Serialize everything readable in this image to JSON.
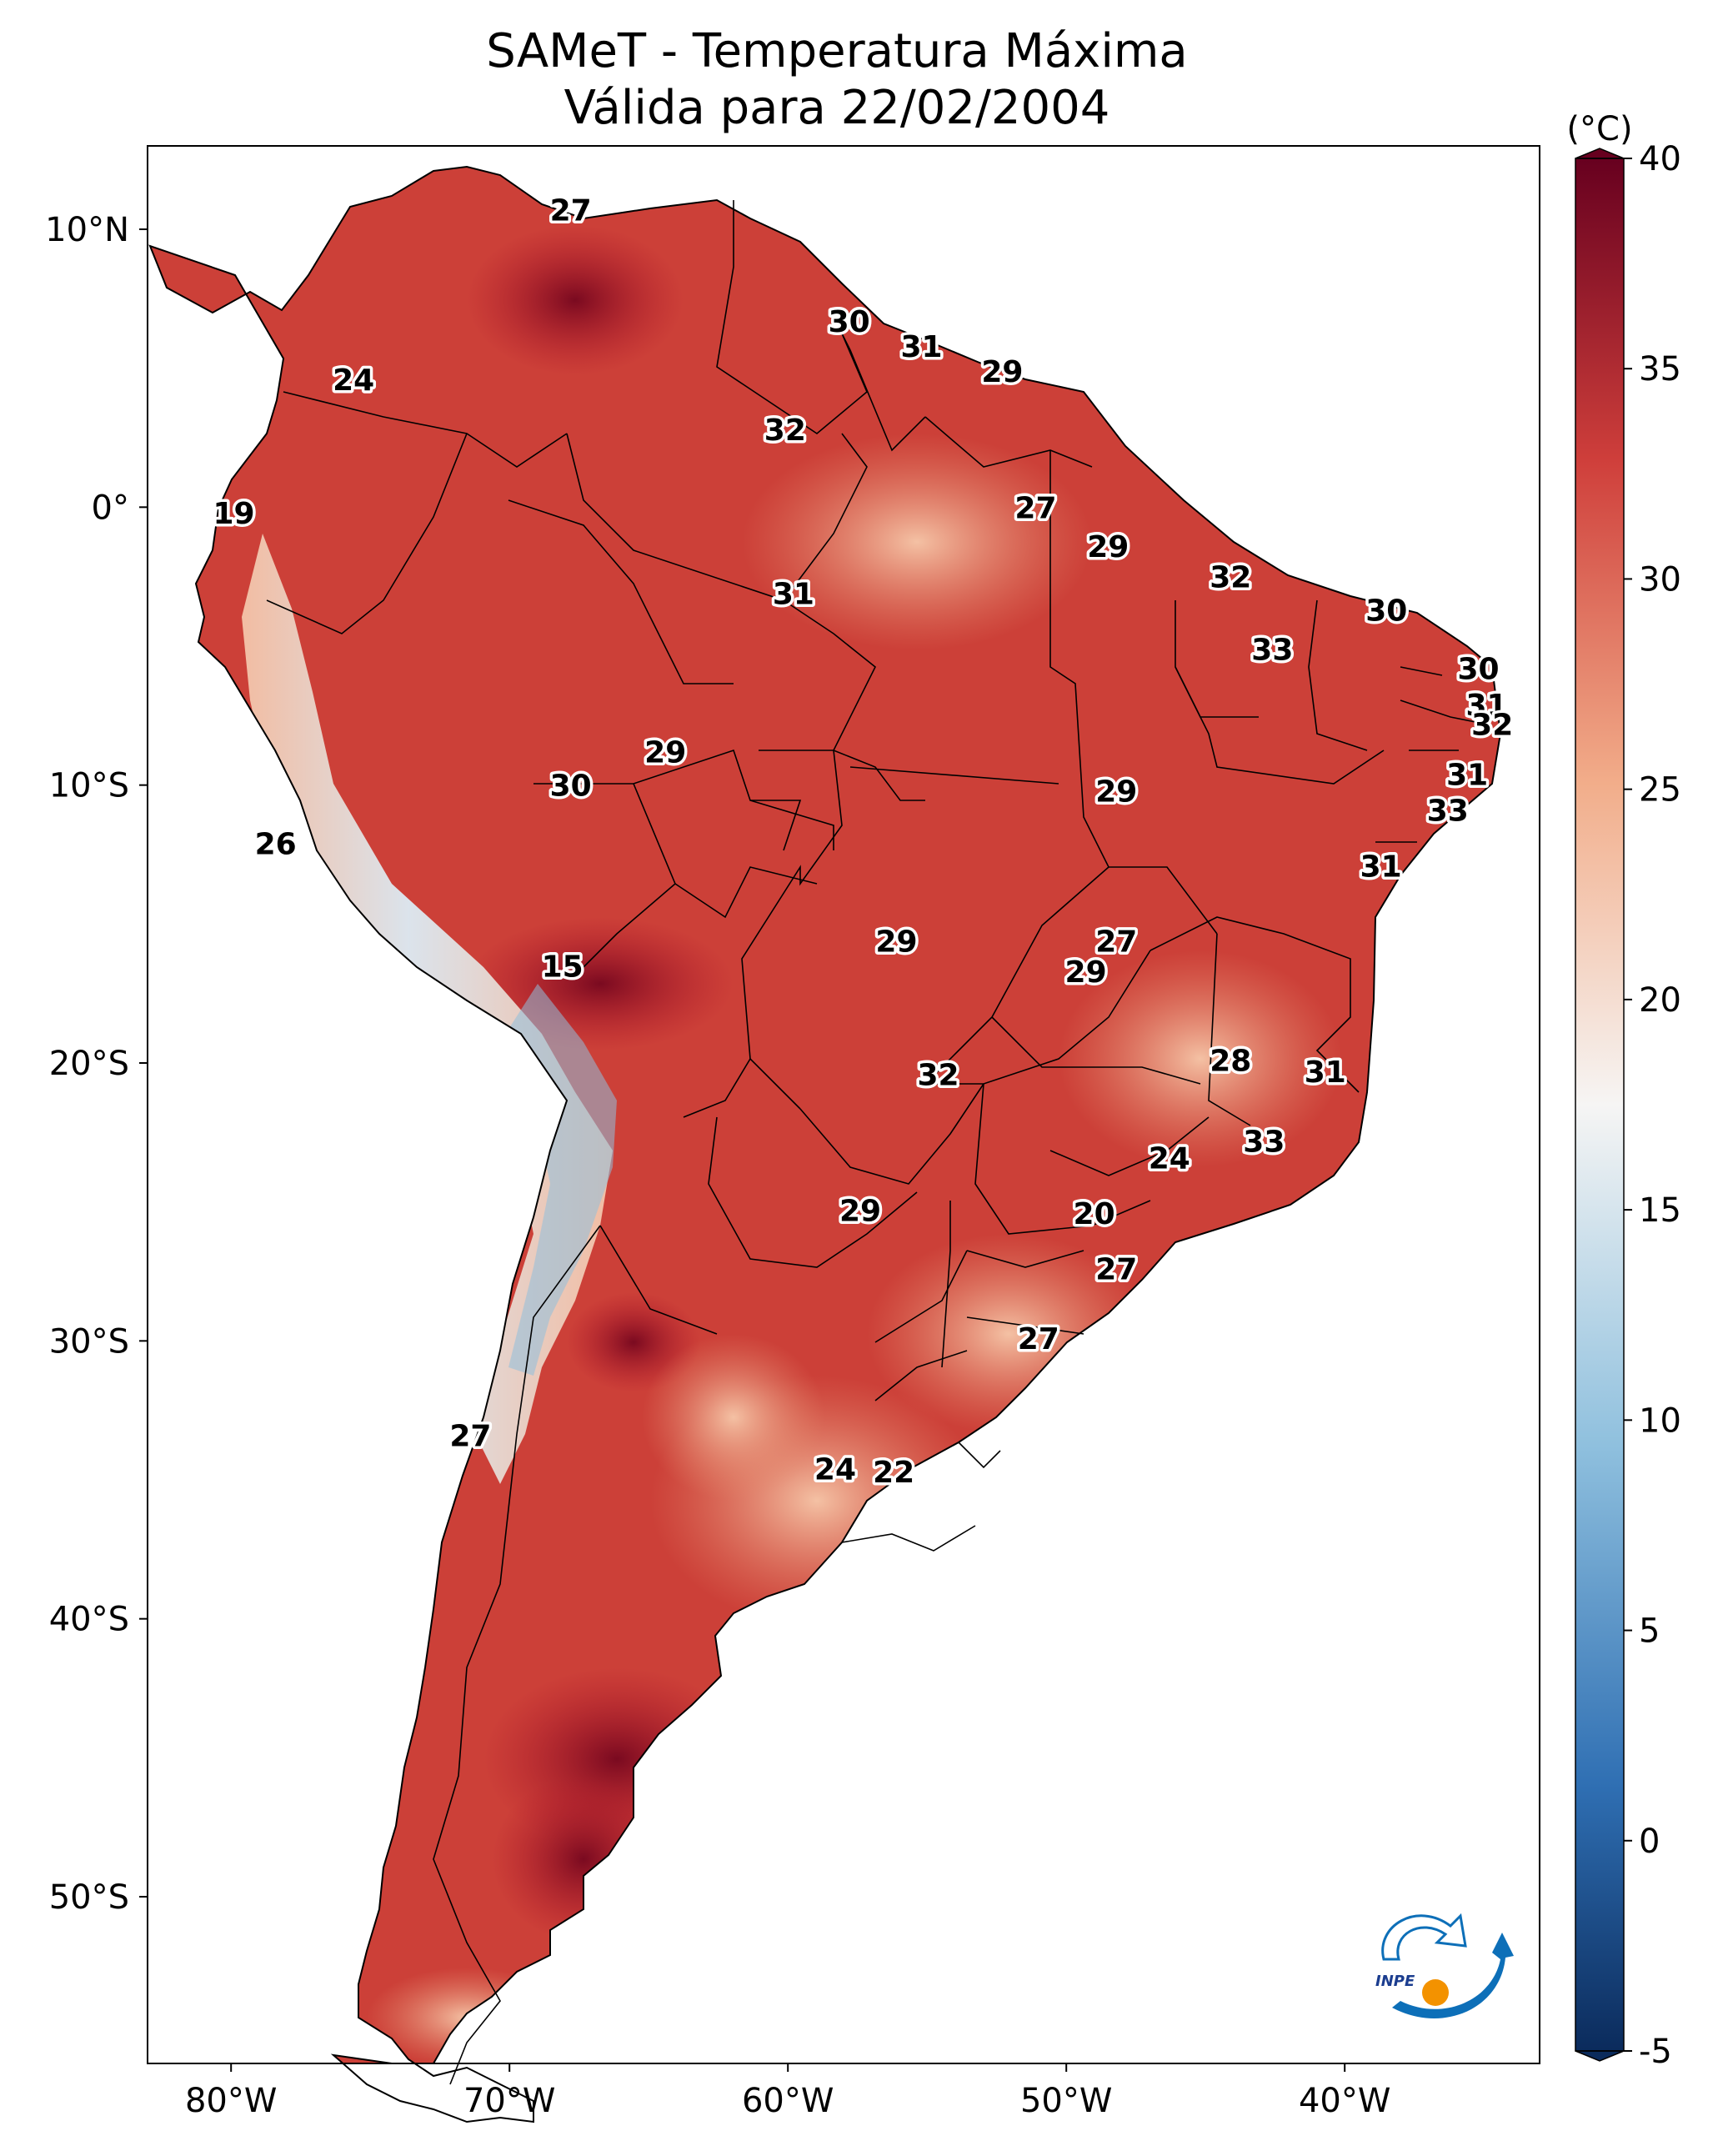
{
  "title": {
    "line1": "SAMeT - Temperatura Máxima",
    "line2": "Válida para 22/02/2004"
  },
  "map": {
    "lon_range": [
      -83,
      -33
    ],
    "lat_range": [
      -56,
      13
    ],
    "lon_ticks": [
      {
        "value": -80,
        "label": "80°W"
      },
      {
        "value": -70,
        "label": "70°W"
      },
      {
        "value": -60,
        "label": "60°W"
      },
      {
        "value": -50,
        "label": "50°W"
      },
      {
        "value": -40,
        "label": "40°W"
      }
    ],
    "lat_ticks": [
      {
        "value": 10,
        "label": "10°N"
      },
      {
        "value": 0,
        "label": "0°"
      },
      {
        "value": -10,
        "label": "10°S"
      },
      {
        "value": -20,
        "label": "20°S"
      },
      {
        "value": -30,
        "label": "30°S"
      },
      {
        "value": -40,
        "label": "40°S"
      },
      {
        "value": -50,
        "label": "50°S"
      }
    ],
    "station_labels": [
      {
        "lon": -67.8,
        "lat": 10.7,
        "label": "27"
      },
      {
        "lon": -75.6,
        "lat": 4.6,
        "label": "24"
      },
      {
        "lon": -57.8,
        "lat": 6.7,
        "label": "30"
      },
      {
        "lon": -55.2,
        "lat": 5.8,
        "label": "31"
      },
      {
        "lon": -52.3,
        "lat": 4.9,
        "label": "29"
      },
      {
        "lon": -60.1,
        "lat": 2.8,
        "label": "32"
      },
      {
        "lon": -51.1,
        "lat": 0.0,
        "label": "27"
      },
      {
        "lon": -79.9,
        "lat": -0.2,
        "label": "19"
      },
      {
        "lon": -48.5,
        "lat": -1.4,
        "label": "29"
      },
      {
        "lon": -59.8,
        "lat": -3.1,
        "label": "31"
      },
      {
        "lon": -44.1,
        "lat": -2.5,
        "label": "32"
      },
      {
        "lon": -38.5,
        "lat": -3.7,
        "label": "30"
      },
      {
        "lon": -42.6,
        "lat": -5.1,
        "label": "33"
      },
      {
        "lon": -35.2,
        "lat": -5.8,
        "label": "30"
      },
      {
        "lon": -34.9,
        "lat": -7.1,
        "label": "31"
      },
      {
        "lon": -34.7,
        "lat": -7.8,
        "label": "32"
      },
      {
        "lon": -64.4,
        "lat": -8.8,
        "label": "29"
      },
      {
        "lon": -35.6,
        "lat": -9.6,
        "label": "31"
      },
      {
        "lon": -67.8,
        "lat": -10.0,
        "label": "30"
      },
      {
        "lon": -48.2,
        "lat": -10.2,
        "label": "29"
      },
      {
        "lon": -36.3,
        "lat": -10.9,
        "label": "33"
      },
      {
        "lon": -78.4,
        "lat": -12.1,
        "label": "26"
      },
      {
        "lon": -38.7,
        "lat": -12.9,
        "label": "31"
      },
      {
        "lon": -56.1,
        "lat": -15.6,
        "label": "29"
      },
      {
        "lon": -48.2,
        "lat": -15.6,
        "label": "27"
      },
      {
        "lon": -49.3,
        "lat": -16.7,
        "label": "29"
      },
      {
        "lon": -68.1,
        "lat": -16.5,
        "label": "15"
      },
      {
        "lon": -44.1,
        "lat": -19.9,
        "label": "28"
      },
      {
        "lon": -40.7,
        "lat": -20.3,
        "label": "31"
      },
      {
        "lon": -54.6,
        "lat": -20.4,
        "label": "32"
      },
      {
        "lon": -42.9,
        "lat": -22.8,
        "label": "33"
      },
      {
        "lon": -46.3,
        "lat": -23.4,
        "label": "24"
      },
      {
        "lon": -49.0,
        "lat": -25.4,
        "label": "20"
      },
      {
        "lon": -57.4,
        "lat": -25.3,
        "label": "29"
      },
      {
        "lon": -48.2,
        "lat": -27.4,
        "label": "27"
      },
      {
        "lon": -51.0,
        "lat": -29.9,
        "label": "27"
      },
      {
        "lon": -71.4,
        "lat": -33.4,
        "label": "27"
      },
      {
        "lon": -58.3,
        "lat": -34.6,
        "label": "24"
      },
      {
        "lon": -56.2,
        "lat": -34.7,
        "label": "22"
      }
    ]
  },
  "colorbar": {
    "unit": "(°C)",
    "min": -5,
    "max": 40,
    "ticks": [
      {
        "value": 40,
        "label": "40"
      },
      {
        "value": 35,
        "label": "35"
      },
      {
        "value": 30,
        "label": "30"
      },
      {
        "value": 25,
        "label": "25"
      },
      {
        "value": 20,
        "label": "20"
      },
      {
        "value": 15,
        "label": "15"
      },
      {
        "value": 10,
        "label": "10"
      },
      {
        "value": 5,
        "label": "5"
      },
      {
        "value": 0,
        "label": "0"
      },
      {
        "value": -5,
        "label": "-5"
      }
    ],
    "colors": {
      "coldest": "#0b2b5c",
      "cold": "#2f6fb3",
      "cool": "#8fc0de",
      "neutral": "#f6f5f4",
      "warm": "#f2ad8a",
      "hot": "#cf3f3b",
      "hottest": "#67001f"
    }
  },
  "logo": {
    "text": "INPE",
    "colors": {
      "blue": "#0d6fb8",
      "orange": "#f39200"
    }
  }
}
